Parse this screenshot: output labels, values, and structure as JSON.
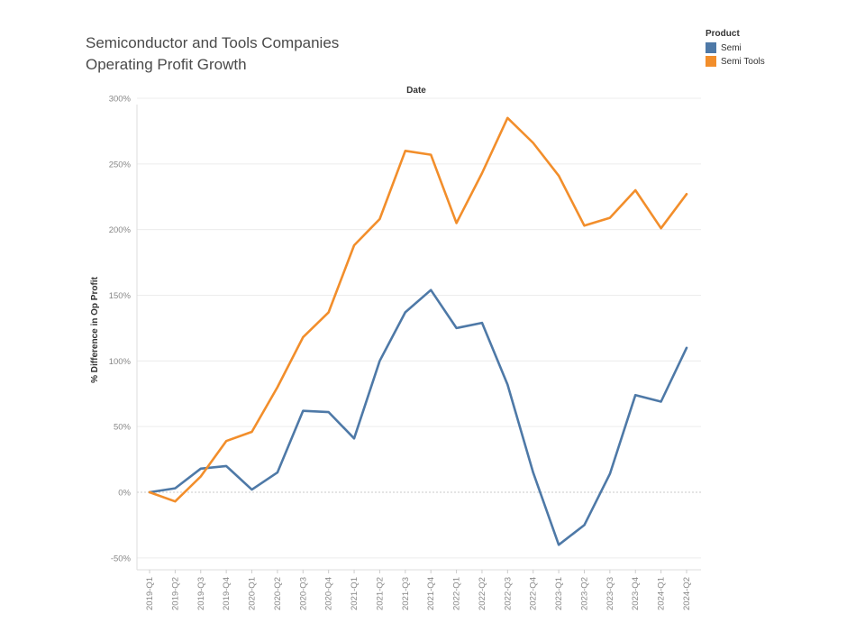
{
  "chart_data": {
    "type": "line",
    "title_lines": [
      "Semiconductor and Tools Companies",
      "Operating Profit Growth"
    ],
    "column_header": "Date",
    "xlabel": "Date",
    "ylabel": "% Difference in Op Profit",
    "ylim": [
      -50,
      300
    ],
    "yticks": [
      -50,
      0,
      50,
      100,
      150,
      200,
      250,
      300
    ],
    "ytick_labels": [
      "-50%",
      "0%",
      "50%",
      "100%",
      "150%",
      "200%",
      "250%",
      "300%"
    ],
    "grid": true,
    "categories": [
      "2019-Q1",
      "2019-Q2",
      "2019-Q3",
      "2019-Q4",
      "2020-Q1",
      "2020-Q2",
      "2020-Q3",
      "2020-Q4",
      "2021-Q1",
      "2021-Q2",
      "2021-Q3",
      "2021-Q4",
      "2022-Q1",
      "2022-Q2",
      "2022-Q3",
      "2022-Q4",
      "2023-Q1",
      "2023-Q2",
      "2023-Q3",
      "2023-Q4",
      "2024-Q1",
      "2024-Q2"
    ],
    "legend_title": "Product",
    "legend_position": "top-right",
    "series": [
      {
        "name": "Semi",
        "color": "#4e79a7",
        "values": [
          0,
          3,
          18,
          20,
          2,
          15,
          62,
          61,
          41,
          100,
          137,
          154,
          125,
          129,
          82,
          15,
          -40,
          -25,
          14,
          74,
          69,
          110
        ]
      },
      {
        "name": "Semi Tools",
        "color": "#f28e2b",
        "values": [
          0,
          -7,
          12,
          39,
          46,
          80,
          118,
          137,
          188,
          208,
          260,
          257,
          205,
          243,
          285,
          266,
          241,
          203,
          209,
          230,
          201,
          227
        ]
      }
    ]
  }
}
